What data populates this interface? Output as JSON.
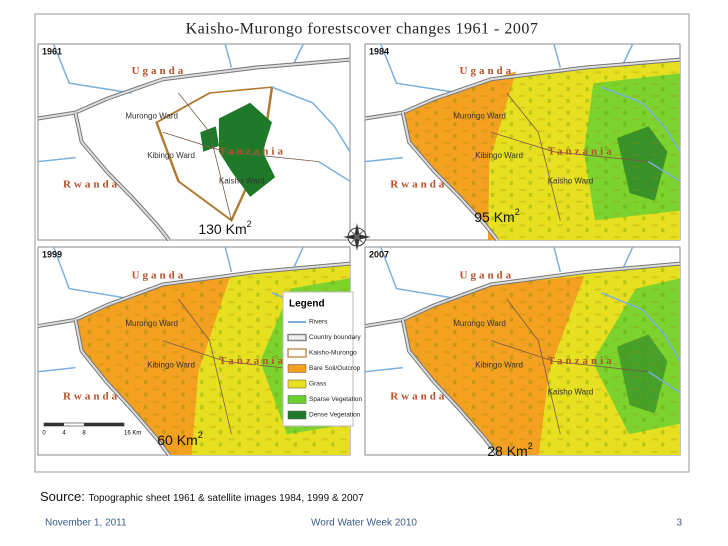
{
  "title": "Kaisho-Murongo forestscover changes 1961 - 2007",
  "panels": [
    {
      "year": "1961",
      "area": "130 Km",
      "area_sup": "2",
      "places": {
        "uganda": "Uganda",
        "rwanda": "Rwanda",
        "murongo": "Murongo Ward",
        "kibingo": "Kibingo Ward",
        "tanzania": "Tanzania",
        "kaisho": "Kaisho Ward"
      }
    },
    {
      "year": "1984",
      "area": "95 Km",
      "area_sup": "2",
      "places": {
        "uganda": "Uganda",
        "rwanda": "Rwanda",
        "murongo": "Murongo Ward",
        "kibingo": "Kibingo Ward",
        "tanzania": "Tanzania",
        "kaisho": "Kaisho Ward"
      }
    },
    {
      "year": "1999",
      "area": "60 Km",
      "area_sup": "2",
      "places": {
        "uganda": "Uganda",
        "rwanda": "Rwanda",
        "murongo": "Murongo Ward",
        "kibingo": "Kibingo Ward",
        "tanzania": "Tanzania"
      }
    },
    {
      "year": "2007",
      "area": "28 Km",
      "area_sup": "2",
      "places": {
        "uganda": "Uganda",
        "rwanda": "Rwanda",
        "murongo": "Murongo Ward",
        "kibingo": "Kibingo Ward",
        "tanzania": "Tanzania",
        "kaisho": "Kaisho Ward"
      }
    }
  ],
  "legend": {
    "title": "Legend",
    "items": [
      {
        "label": "Rivers",
        "color": "#7ab0e0",
        "kind": "line"
      },
      {
        "label": "Country boundary",
        "color": "#888888",
        "kind": "boundary"
      },
      {
        "label": "Kaisho-Murongo",
        "color": "#b07a30",
        "kind": "outline"
      },
      {
        "label": "Bare Soil/Outcrop",
        "color": "#f4a020",
        "kind": "fill"
      },
      {
        "label": "Grass",
        "color": "#e6e020",
        "kind": "fill"
      },
      {
        "label": "Sparse Vegetation",
        "color": "#6ad030",
        "kind": "fill"
      },
      {
        "label": "Dense Vegetation",
        "color": "#1e7a28",
        "kind": "fill"
      }
    ]
  },
  "scale_bar": [
    "0",
    "4",
    "8",
    "16 Km"
  ],
  "source": {
    "label": "Source:",
    "text": "Topographic sheet 1961 & satellite images 1984, 1999 & 2007"
  },
  "footer": {
    "date": "November 1, 2011",
    "event": "Word Water Week 2010",
    "page": "3"
  }
}
